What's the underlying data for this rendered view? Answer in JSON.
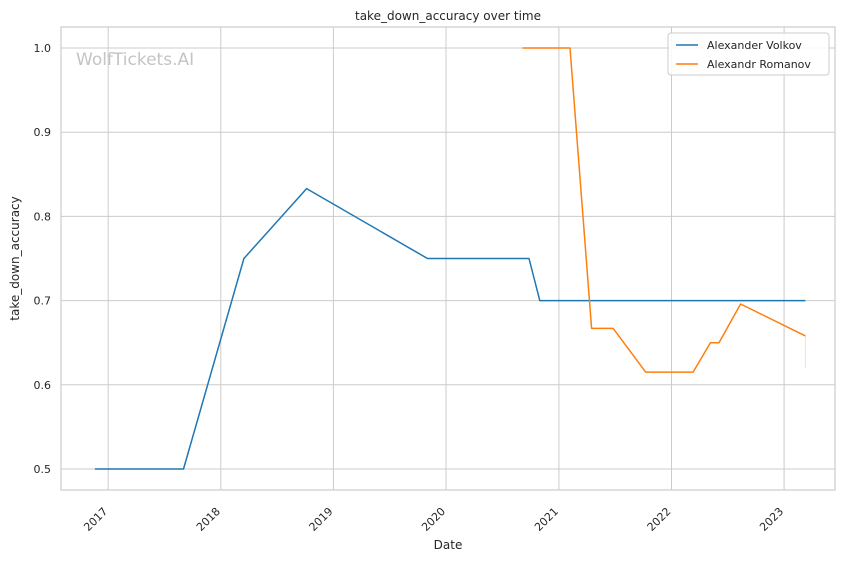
{
  "chart_data": {
    "type": "line",
    "title": "take_down_accuracy over time",
    "xlabel": "Date",
    "ylabel": "take_down_accuracy",
    "watermark": "WolfTickets.AI",
    "x_tick_labels": [
      "2017",
      "2018",
      "2019",
      "2020",
      "2021",
      "2022",
      "2023"
    ],
    "y_tick_labels": [
      "0.5",
      "0.6",
      "0.7",
      "0.8",
      "0.9",
      "1.0"
    ],
    "xlim": [
      "2016-08-01",
      "2023-06-15"
    ],
    "ylim": [
      0.475,
      1.025
    ],
    "grid": true,
    "legend_position": "top-right",
    "series": [
      {
        "name": "Alexander Volkov",
        "color": "#1f77b4",
        "x": [
          "2016-11-19",
          "2017-09-02",
          "2018-03-17",
          "2018-10-06",
          "2019-11-02",
          "2020-09-26",
          "2020-10-31",
          "2023-03-11"
        ],
        "y": [
          0.5,
          0.5,
          0.75,
          0.833,
          0.75,
          0.75,
          0.7,
          0.7
        ]
      },
      {
        "name": "Alexandr Romanov",
        "color": "#ff7f0e",
        "x": [
          "2020-09-05",
          "2021-02-06",
          "2021-04-17",
          "2021-06-26",
          "2021-10-09",
          "2022-03-12",
          "2022-05-07",
          "2022-06-04",
          "2022-08-13",
          "2023-03-11"
        ],
        "y": [
          1.0,
          1.0,
          0.667,
          0.667,
          0.615,
          0.615,
          0.65,
          0.65,
          0.696,
          0.658
        ]
      }
    ]
  }
}
